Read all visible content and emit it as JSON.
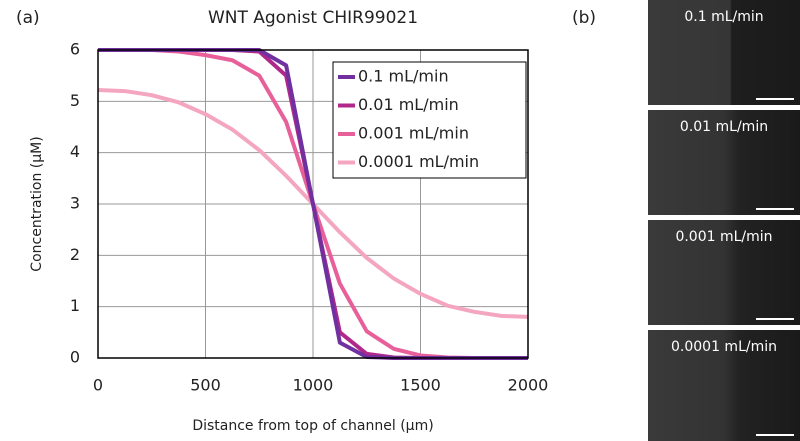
{
  "panel_a_label": "(a)",
  "chart_data": {
    "type": "line",
    "title": "WNT Agonist CHIR99021",
    "x_label": "Distance from top of channel (μm)",
    "y_label": "Concentration (μM)",
    "x": [
      0,
      125,
      250,
      375,
      500,
      625,
      750,
      875,
      1000,
      1125,
      1250,
      1375,
      1500,
      1625,
      1750,
      1875,
      2000
    ],
    "series": [
      {
        "name": "0.1 mL/min",
        "color": "#7030a0",
        "values": [
          6,
          6,
          6,
          6,
          6,
          6,
          6,
          5.7,
          3,
          0.3,
          0.02,
          0,
          0,
          0,
          0,
          0,
          0
        ]
      },
      {
        "name": "0.01 mL/min",
        "color": "#b0288a",
        "values": [
          6,
          6,
          6,
          6,
          6,
          6,
          5.97,
          5.5,
          3,
          0.5,
          0.08,
          0.01,
          0,
          0,
          0,
          0,
          0
        ]
      },
      {
        "name": "0.001 mL/min",
        "color": "#e8609a",
        "values": [
          6,
          6,
          6,
          5.97,
          5.9,
          5.8,
          5.5,
          4.6,
          3,
          1.45,
          0.52,
          0.18,
          0.05,
          0.01,
          0,
          0,
          0
        ]
      },
      {
        "name": "0.0001 mL/min",
        "color": "#f4a6c0",
        "values": [
          5.22,
          5.2,
          5.12,
          4.98,
          4.75,
          4.45,
          4.05,
          3.55,
          3,
          2.45,
          1.95,
          1.55,
          1.25,
          1.02,
          0.9,
          0.82,
          0.8
        ]
      }
    ],
    "xlim": [
      0,
      2000
    ],
    "xticks": [
      0,
      500,
      1000,
      1500,
      2000
    ],
    "ylim": [
      0,
      6
    ],
    "yticks": [
      0,
      1,
      2,
      3,
      4,
      5,
      6
    ],
    "grid": true,
    "legend": "upper right"
  },
  "panel_b": {
    "label": "(b)",
    "images": [
      "0.1 mL/min",
      "0.01 mL/min",
      "0.001 mL/min",
      "0.0001 mL/min"
    ]
  }
}
